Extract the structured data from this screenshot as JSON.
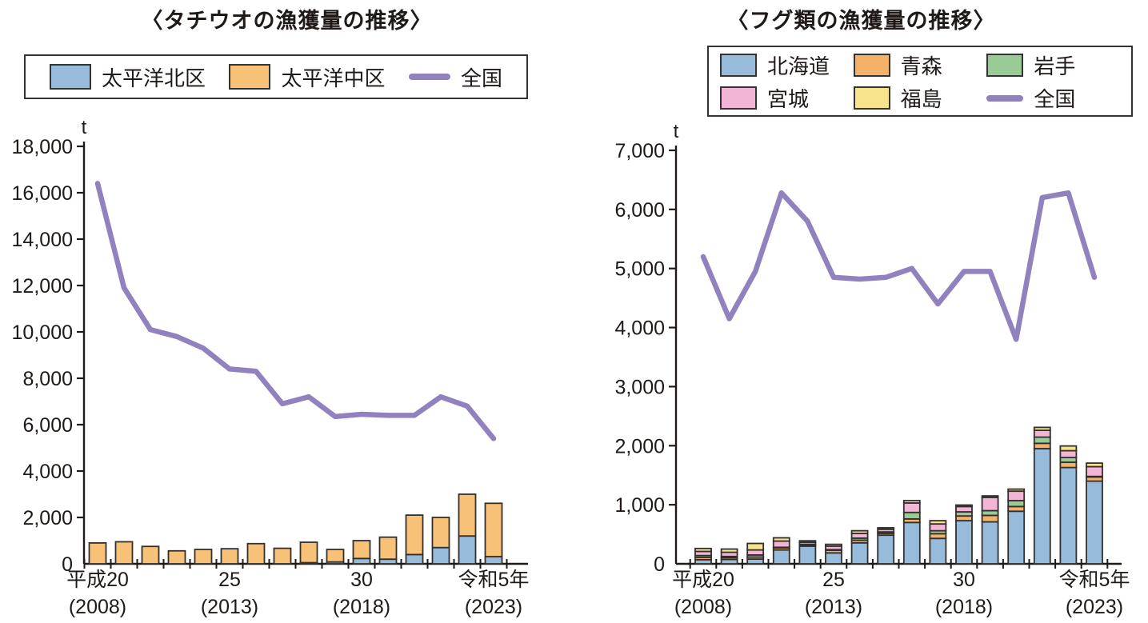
{
  "page": {
    "background": "#ffffff",
    "axis_color": "#1f1a17",
    "bar_border_color": "#332f2d"
  },
  "chart_data": [
    {
      "type": "bar+line",
      "title": "〈タチウオの漁獲量の推移〉",
      "unit": "t",
      "grid": false,
      "legend_position": "top",
      "y_axis": {
        "min": 0,
        "max": 18000,
        "tick_step": 2000,
        "tick_labels": [
          "0",
          "2,000",
          "4,000",
          "6,000",
          "8,000",
          "10,000",
          "12,000",
          "14,000",
          "16,000",
          "18,000"
        ]
      },
      "x_years": [
        2008,
        2009,
        2010,
        2011,
        2012,
        2013,
        2014,
        2015,
        2016,
        2017,
        2018,
        2019,
        2020,
        2021,
        2022,
        2023
      ],
      "x_ticks": [
        {
          "index": 0,
          "line1": "平成20",
          "line2": "(2008)"
        },
        {
          "index": 5,
          "line1": "25",
          "line2": "(2013)"
        },
        {
          "index": 10,
          "line1": "30",
          "line2": "(2018)"
        },
        {
          "index": 15,
          "line1": "令和5年",
          "line2": "(2023)"
        }
      ],
      "legend": [
        {
          "label": "太平洋北区",
          "color": "#97bbda",
          "type": "box"
        },
        {
          "label": "太平洋中区",
          "color": "#f7c177",
          "type": "box"
        },
        {
          "label": "全国",
          "color": "#9182bf",
          "type": "line"
        }
      ],
      "series": [
        {
          "name": "太平洋北区",
          "type": "bar",
          "color": "#97bbda",
          "values": [
            0,
            0,
            0,
            0,
            0,
            0,
            0,
            0,
            50,
            80,
            230,
            200,
            400,
            700,
            1200,
            310
          ]
        },
        {
          "name": "太平洋中区",
          "type": "bar",
          "color": "#f7c177",
          "values": [
            900,
            950,
            750,
            560,
            620,
            650,
            870,
            670,
            880,
            540,
            770,
            950,
            1700,
            1300,
            1800,
            2300
          ]
        },
        {
          "name": "全国",
          "type": "line",
          "color": "#9182bf",
          "values": [
            16400,
            11900,
            10100,
            9800,
            9300,
            8400,
            8300,
            6900,
            7200,
            6350,
            6450,
            6400,
            6400,
            7200,
            6800,
            5400
          ]
        }
      ]
    },
    {
      "type": "bar+line",
      "title": "〈フグ類の漁獲量の推移〉",
      "unit": "t",
      "grid": false,
      "legend_position": "top",
      "y_axis": {
        "min": 0,
        "max": 7000,
        "tick_step": 1000,
        "tick_labels": [
          "0",
          "1,000",
          "2,000",
          "3,000",
          "4,000",
          "5,000",
          "6,000",
          "7,000"
        ]
      },
      "x_years": [
        2008,
        2009,
        2010,
        2011,
        2012,
        2013,
        2014,
        2015,
        2016,
        2017,
        2018,
        2019,
        2020,
        2021,
        2022,
        2023
      ],
      "x_ticks": [
        {
          "index": 0,
          "line1": "平成20",
          "line2": "(2008)"
        },
        {
          "index": 5,
          "line1": "25",
          "line2": "(2013)"
        },
        {
          "index": 10,
          "line1": "30",
          "line2": "(2018)"
        },
        {
          "index": 15,
          "line1": "令和5年",
          "line2": "(2023)"
        }
      ],
      "legend": [
        {
          "label": "北海道",
          "color": "#97bbda",
          "type": "box"
        },
        {
          "label": "青森",
          "color": "#f4b269",
          "type": "box"
        },
        {
          "label": "岩手",
          "color": "#98cb96",
          "type": "box"
        },
        {
          "label": "宮城",
          "color": "#f2b5d6",
          "type": "box"
        },
        {
          "label": "福島",
          "color": "#f8e48d",
          "type": "box"
        },
        {
          "label": "全国",
          "color": "#9182bf",
          "type": "line"
        }
      ],
      "series": [
        {
          "name": "北海道",
          "type": "bar",
          "color": "#97bbda",
          "values": [
            70,
            75,
            80,
            235,
            300,
            185,
            355,
            485,
            700,
            430,
            730,
            710,
            890,
            1950,
            1630,
            1400
          ]
        },
        {
          "name": "青森",
          "type": "bar",
          "color": "#f4b269",
          "values": [
            40,
            30,
            35,
            35,
            20,
            45,
            45,
            30,
            60,
            80,
            80,
            110,
            80,
            90,
            90,
            70
          ]
        },
        {
          "name": "岩手",
          "type": "bar",
          "color": "#98cb96",
          "values": [
            30,
            20,
            35,
            10,
            10,
            10,
            35,
            25,
            110,
            50,
            70,
            80,
            100,
            105,
            80,
            10
          ]
        },
        {
          "name": "宮城",
          "type": "bar",
          "color": "#f2b5d6",
          "values": [
            70,
            70,
            85,
            105,
            35,
            60,
            80,
            45,
            160,
            115,
            90,
            225,
            160,
            115,
            115,
            165
          ]
        },
        {
          "name": "福島",
          "type": "bar",
          "color": "#f8e48d",
          "values": [
            50,
            55,
            110,
            55,
            25,
            30,
            45,
            25,
            40,
            55,
            25,
            25,
            35,
            50,
            80,
            60
          ]
        },
        {
          "name": "全国",
          "type": "line",
          "color": "#9182bf",
          "values": [
            5200,
            4150,
            4950,
            6280,
            5800,
            4850,
            4820,
            4850,
            5000,
            4400,
            4950,
            4950,
            3800,
            6200,
            6280,
            4850
          ]
        }
      ]
    }
  ]
}
